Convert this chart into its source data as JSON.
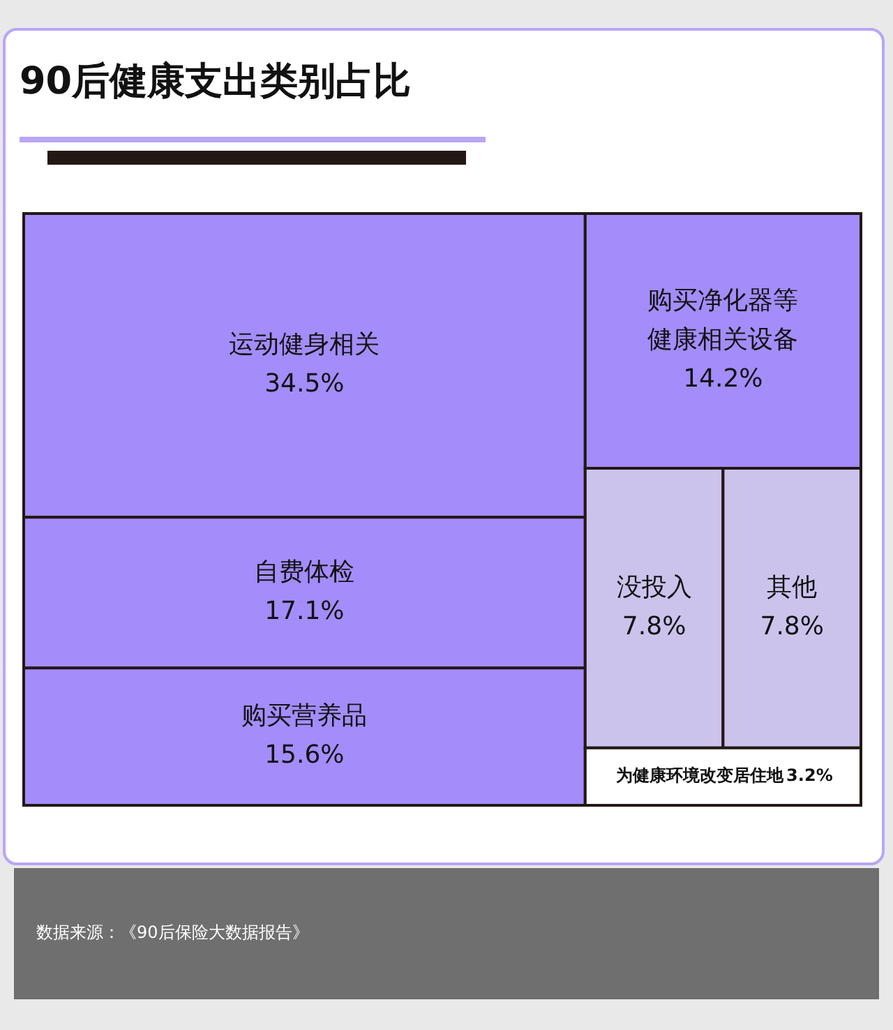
{
  "chart_data": {
    "type": "other",
    "title": "90后健康支出类别占比",
    "categories": [
      "运动健身相关",
      "自费体检",
      "购买营养品",
      "购买净化器等健康相关设备",
      "没投入",
      "其他",
      "为健康环境改变居住地"
    ],
    "values": [
      34.5,
      17.1,
      15.6,
      14.2,
      7.8,
      7.8,
      3.2
    ],
    "value_labels": [
      "34.5%",
      "17.1%",
      "15.6%",
      "14.2%",
      "7.8%",
      "7.8%",
      "3.2%"
    ],
    "colors": [
      "#a48cfb",
      "#a48cfb",
      "#a48cfb",
      "#a48cfb",
      "#cbc3ec",
      "#cbc3ec",
      "#ffffff"
    ],
    "annotations": [
      "数据来源：《90后保险大数据报告》"
    ]
  }
}
